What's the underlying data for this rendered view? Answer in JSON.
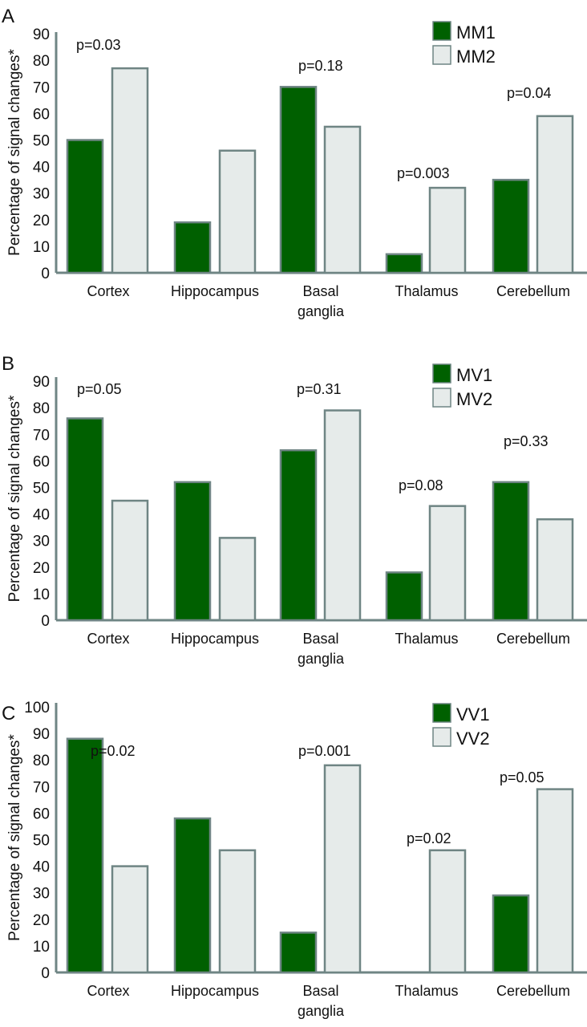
{
  "colors": {
    "series1": "#006000",
    "series2": "#e6ebea",
    "stroke": "#6f8584",
    "axis": "#6f8584"
  },
  "chart_data": [
    {
      "type": "bar",
      "panel": "A",
      "ylabel": "Percentage of signal changes*",
      "ylim": [
        0,
        90
      ],
      "yticks": [
        0,
        10,
        20,
        30,
        40,
        50,
        60,
        70,
        80,
        90
      ],
      "categories": [
        "Cortex",
        "Hippocampus",
        "Basal ganglia",
        "Thalamus",
        "Cerebellum"
      ],
      "legend_position": "top-right",
      "series": [
        {
          "name": "MM1",
          "values": [
            50,
            19,
            70,
            7,
            35
          ]
        },
        {
          "name": "MM2",
          "values": [
            77,
            46,
            55,
            32,
            59
          ]
        }
      ],
      "annotations": [
        "p=0.03",
        "",
        "p=0.18",
        "p=0.003",
        "p=0.04"
      ]
    },
    {
      "type": "bar",
      "panel": "B",
      "ylabel": "Percentage of signal changes*",
      "ylim": [
        0,
        90
      ],
      "yticks": [
        0,
        10,
        20,
        30,
        40,
        50,
        60,
        70,
        80,
        90
      ],
      "categories": [
        "Cortex",
        "Hippocampus",
        "Basal ganglia",
        "Thalamus",
        "Cerebellum"
      ],
      "legend_position": "top-right",
      "series": [
        {
          "name": "MV1",
          "values": [
            76,
            52,
            64,
            18,
            52
          ]
        },
        {
          "name": "MV2",
          "values": [
            45,
            31,
            79,
            43,
            38
          ]
        }
      ],
      "annotations": [
        "p=0.05",
        "",
        "p=0.31",
        "p=0.08",
        "p=0.33"
      ]
    },
    {
      "type": "bar",
      "panel": "C",
      "ylabel": "Percentage of signal changes*",
      "ylim": [
        0,
        100
      ],
      "yticks": [
        0,
        10,
        20,
        30,
        40,
        50,
        60,
        70,
        80,
        90,
        100
      ],
      "categories": [
        "Cortex",
        "Hippocampus",
        "Basal ganglia",
        "Thalamus",
        "Cerebellum"
      ],
      "legend_position": "top-right",
      "series": [
        {
          "name": "VV1",
          "values": [
            88,
            58,
            15,
            0,
            29
          ]
        },
        {
          "name": "VV2",
          "values": [
            40,
            46,
            78,
            46,
            69
          ]
        }
      ],
      "annotations": [
        "p=0.02",
        "",
        "p=0.001",
        "p=0.02",
        "p=0.05"
      ]
    }
  ]
}
